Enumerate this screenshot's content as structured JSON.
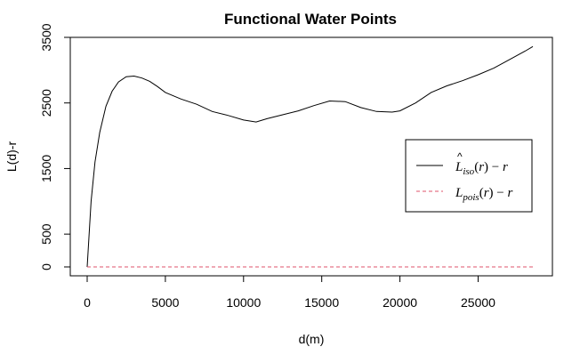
{
  "chart_data": {
    "type": "line",
    "title": "Functional Water Points",
    "xlabel": "d(m)",
    "ylabel": "L(d)-r",
    "xlim": [
      0,
      28500
    ],
    "ylim": [
      0,
      3500
    ],
    "x_ticks": [
      0,
      5000,
      10000,
      15000,
      20000,
      25000
    ],
    "y_ticks": [
      0,
      500,
      1500,
      2500,
      3500
    ],
    "grid": false,
    "legend_position": "right",
    "series": [
      {
        "name": "L̂iso(r) − r",
        "color": "#000000",
        "style": "solid",
        "x": [
          0,
          250,
          500,
          800,
          1200,
          1600,
          2000,
          2500,
          3000,
          3500,
          4000,
          4500,
          5000,
          6000,
          7000,
          8000,
          9000,
          10000,
          10800,
          11500,
          12500,
          13500,
          14500,
          15500,
          16500,
          17500,
          18500,
          19500,
          20000,
          21000,
          22000,
          23000,
          24000,
          25000,
          26000,
          27000,
          28000,
          28500
        ],
        "y": [
          0,
          1000,
          1600,
          2050,
          2450,
          2680,
          2820,
          2900,
          2910,
          2880,
          2830,
          2750,
          2660,
          2560,
          2480,
          2370,
          2310,
          2240,
          2210,
          2260,
          2320,
          2380,
          2460,
          2530,
          2520,
          2430,
          2370,
          2360,
          2380,
          2500,
          2660,
          2760,
          2840,
          2930,
          3030,
          3160,
          3290,
          3360
        ]
      },
      {
        "name": "Lpois(r) − r",
        "color": "#DF536B",
        "style": "dashed",
        "x": [
          0,
          28500
        ],
        "y": [
          0,
          0
        ]
      }
    ]
  }
}
